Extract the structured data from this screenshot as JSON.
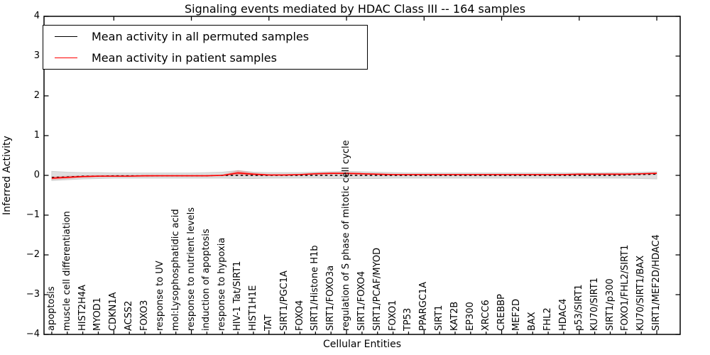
{
  "figure": {
    "title": "Signaling events mediated by HDAC Class III -- 164 samples",
    "xlabel": "Cellular Entities",
    "ylabel": "Inferred Activity"
  },
  "legend": {
    "position": "upper left",
    "entries": [
      {
        "label": "Mean activity in all permuted samples",
        "color": "#000000"
      },
      {
        "label": "Mean activity in patient samples",
        "color": "#ff0000"
      }
    ]
  },
  "chart_data": {
    "type": "line",
    "title": "Signaling events mediated by HDAC Class III -- 164 samples",
    "xlabel": "Cellular Entities",
    "ylabel": "Inferred Activity",
    "ylim": [
      -4,
      4
    ],
    "yticks": [
      4,
      3,
      2,
      1,
      0,
      -1,
      -2,
      -3,
      -4
    ],
    "ytick_labels": [
      "4",
      "3",
      "2",
      "1",
      "0",
      "−1",
      "−2",
      "−3",
      "−4"
    ],
    "grid": false,
    "legend_position": "upper left",
    "sample_count": "164",
    "categories": [
      "apoptosis",
      "muscle cell differentiation",
      "HIST2H4A",
      "MYOD1",
      "CDKN1A",
      "ACSS2",
      "FOXO3",
      "response to UV",
      "mol:Lysophosphatidic acid",
      "response to nutrient levels",
      "induction of apoptosis",
      "response to hypoxia",
      "HIV-1 Tat/SIRT1",
      "HIST1H1E",
      "TAT",
      "SIRT1/PGC1A",
      "FOXO4",
      "SIRT1/Histone H1b",
      "SIRT1/FOXO3a",
      "regulation of S phase of mitotic cell cycle",
      "SIRT1/FOXO4",
      "SIRT1/PCAF/MYOD",
      "FOXO1",
      "TP53",
      "PPARGC1A",
      "SIRT1",
      "KAT2B",
      "EP300",
      "XRCC6",
      "CREBBP",
      "MEF2D",
      "BAX",
      "FHL2",
      "HDAC4",
      "p53/SIRT1",
      "KU70/SIRT1",
      "SIRT1/p300",
      "FOXO1/FHL2/SIRT1",
      "KU70/SIRT1/BAX",
      "SIRT1/MEF2D/HDAC4"
    ],
    "series": [
      {
        "name": "Mean activity in all permuted samples",
        "color": "#000000",
        "style": "dashed",
        "values": [
          -0.05,
          -0.04,
          -0.02,
          -0.02,
          -0.01,
          -0.01,
          -0.01,
          -0.01,
          -0.01,
          -0.01,
          -0.01,
          0.0,
          0.0,
          0.0,
          0.0,
          0.0,
          0.0,
          0.0,
          0.0,
          0.0,
          0.0,
          0.0,
          0.0,
          0.0,
          0.0,
          0.0,
          0.0,
          0.0,
          0.0,
          0.0,
          0.0,
          0.0,
          0.0,
          0.0,
          0.0,
          0.0,
          0.0,
          0.01,
          0.02,
          0.03
        ]
      },
      {
        "name": "Mean activity in patient samples",
        "color": "#ff0000",
        "style": "solid",
        "values": [
          -0.07,
          -0.05,
          -0.03,
          -0.02,
          -0.02,
          -0.02,
          -0.01,
          -0.01,
          -0.01,
          -0.01,
          -0.01,
          0.0,
          0.06,
          0.03,
          0.01,
          0.01,
          0.02,
          0.04,
          0.05,
          0.05,
          0.04,
          0.03,
          0.02,
          0.02,
          0.02,
          0.02,
          0.02,
          0.02,
          0.02,
          0.02,
          0.02,
          0.02,
          0.02,
          0.02,
          0.03,
          0.03,
          0.03,
          0.03,
          0.04,
          0.05
        ]
      }
    ],
    "permuted_envelope": {
      "color": "#dedede",
      "upper": [
        0.1,
        0.08,
        0.07,
        0.07,
        0.06,
        0.06,
        0.06,
        0.06,
        0.06,
        0.06,
        0.07,
        0.08,
        0.12,
        0.08,
        0.07,
        0.07,
        0.07,
        0.08,
        0.09,
        0.1,
        0.09,
        0.08,
        0.07,
        0.06,
        0.06,
        0.06,
        0.06,
        0.06,
        0.06,
        0.06,
        0.06,
        0.06,
        0.06,
        0.06,
        0.06,
        0.06,
        0.07,
        0.07,
        0.08,
        0.09
      ],
      "lower": [
        -0.13,
        -0.11,
        -0.09,
        -0.08,
        -0.07,
        -0.07,
        -0.07,
        -0.07,
        -0.07,
        -0.07,
        -0.07,
        -0.07,
        -0.08,
        -0.08,
        -0.07,
        -0.07,
        -0.07,
        -0.07,
        -0.08,
        -0.08,
        -0.08,
        -0.08,
        -0.07,
        -0.07,
        -0.07,
        -0.07,
        -0.07,
        -0.07,
        -0.07,
        -0.07,
        -0.07,
        -0.07,
        -0.07,
        -0.07,
        -0.07,
        -0.07,
        -0.07,
        -0.07,
        -0.08,
        -0.09
      ]
    },
    "patient_envelope": {
      "color": "rgba(255,0,0,0.16)",
      "upper": [
        -0.03,
        -0.01,
        0.0,
        0.01,
        0.01,
        0.01,
        0.01,
        0.01,
        0.01,
        0.01,
        0.01,
        0.02,
        0.13,
        0.07,
        0.03,
        0.03,
        0.04,
        0.07,
        0.08,
        0.08,
        0.07,
        0.05,
        0.04,
        0.03,
        0.03,
        0.03,
        0.03,
        0.03,
        0.03,
        0.03,
        0.03,
        0.03,
        0.03,
        0.04,
        0.04,
        0.04,
        0.05,
        0.05,
        0.06,
        0.08
      ],
      "lower": [
        -0.11,
        -0.09,
        -0.06,
        -0.05,
        -0.04,
        -0.04,
        -0.04,
        -0.03,
        -0.03,
        -0.03,
        -0.03,
        -0.02,
        0.0,
        -0.01,
        -0.01,
        -0.01,
        0.0,
        0.01,
        0.02,
        0.02,
        0.01,
        0.0,
        0.0,
        0.0,
        0.0,
        0.0,
        0.0,
        0.0,
        0.0,
        0.0,
        0.0,
        0.0,
        0.0,
        0.0,
        0.01,
        0.01,
        0.01,
        0.01,
        0.02,
        0.03
      ]
    }
  }
}
